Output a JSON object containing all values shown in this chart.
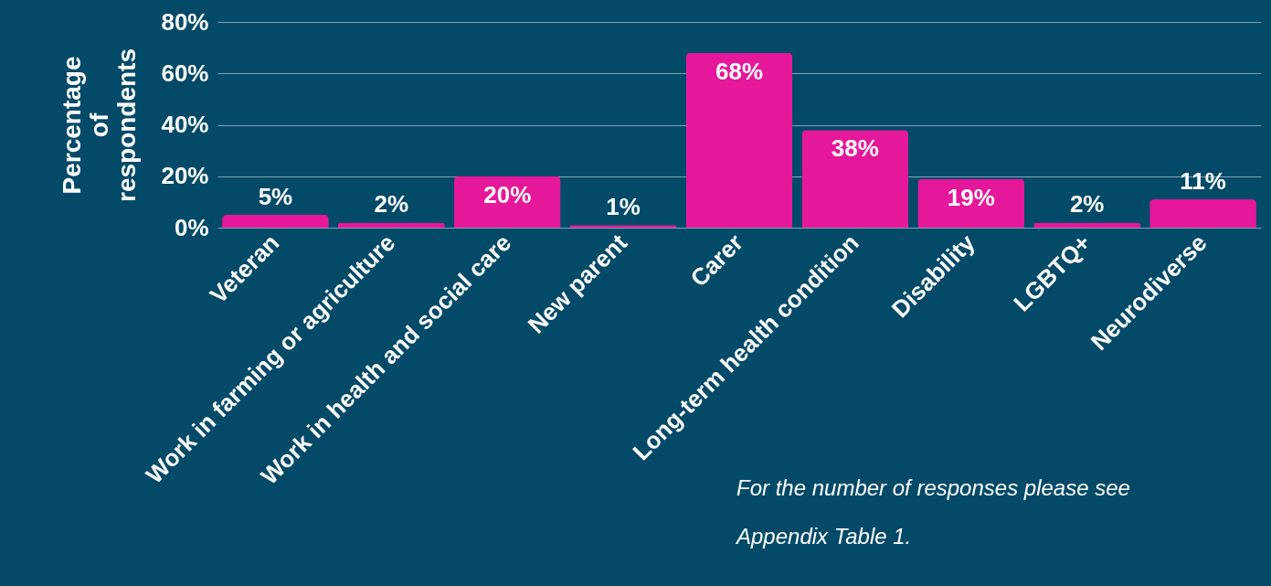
{
  "chart_data": {
    "type": "bar",
    "ylabel": "Percentage of respondents",
    "categories": [
      "Veteran",
      "Work in farming or agriculture",
      "Work in health and social care",
      "New parent",
      "Carer",
      "Long-term health condition",
      "Disability",
      "LGBTQ+",
      "Neurodiverse"
    ],
    "values": [
      5,
      2,
      20,
      1,
      68,
      38,
      19,
      2,
      11
    ],
    "value_labels": [
      "5%",
      "2%",
      "20%",
      "1%",
      "68%",
      "38%",
      "19%",
      "2%",
      "11%"
    ],
    "color": "#e5179a",
    "ylim": [
      0,
      80
    ],
    "yticks": [
      {
        "value": 0,
        "label": "0%"
      },
      {
        "value": 20,
        "label": "20%"
      },
      {
        "value": 40,
        "label": "40%"
      },
      {
        "value": 60,
        "label": "60%"
      },
      {
        "value": 80,
        "label": "80%"
      }
    ],
    "grid": "y",
    "annotations": [
      "For the number of responses please see",
      "Appendix Table 1."
    ]
  }
}
